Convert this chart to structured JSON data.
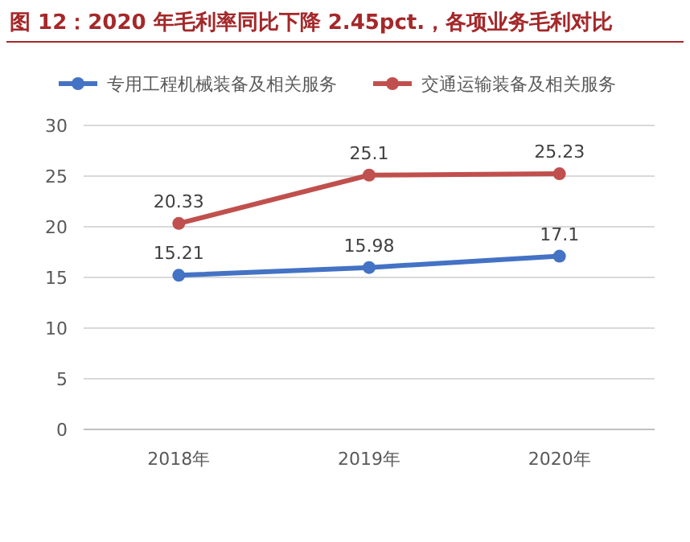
{
  "chart_data": {
    "type": "line",
    "title": "图 12：2020 年毛利率同比下降 2.45pct.，各项业务毛利对比",
    "categories": [
      "2018年",
      "2019年",
      "2020年"
    ],
    "series": [
      {
        "name": "专用工程机械装备及相关服务",
        "color": "#4472c4",
        "values": [
          15.21,
          15.98,
          17.1
        ]
      },
      {
        "name": "交通运输装备及相关服务",
        "color": "#c0504d",
        "values": [
          20.33,
          25.1,
          25.23
        ]
      }
    ],
    "ylim": [
      0,
      30
    ],
    "yticks": [
      0,
      5,
      10,
      15,
      20,
      25,
      30
    ],
    "grid": "y",
    "legend": "top",
    "marker": "circle",
    "data_labels": true
  }
}
